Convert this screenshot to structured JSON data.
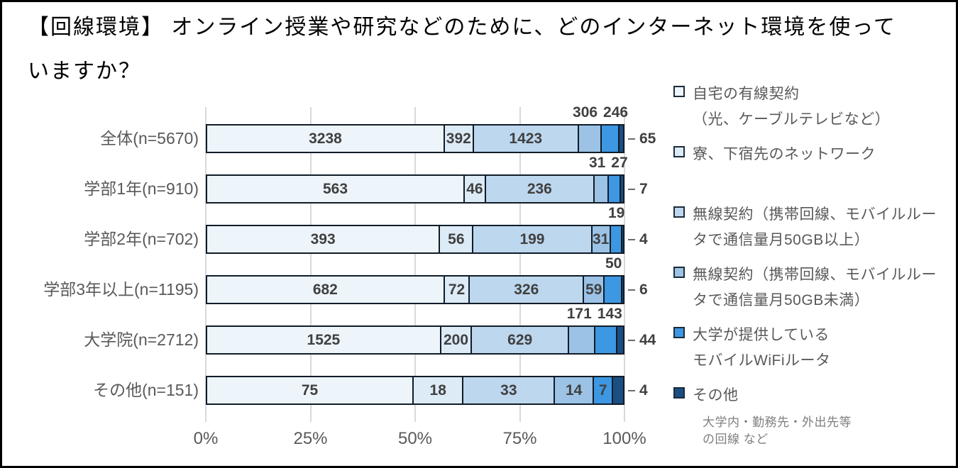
{
  "title": {
    "line1": "【回線環境】 オンライン授業や研究などのために、どのインターネット環境を使って",
    "line2": "いますか？"
  },
  "chart_data": {
    "type": "bar",
    "subtype": "horizontal-100pct-stacked",
    "title": "【回線環境】 オンライン授業や研究などのために、どのインターネット環境を使っていますか？",
    "categories": [
      "全体(n=5670)",
      "学部1年(n=910)",
      "学部2年(n=702)",
      "学部3年以上(n=1195)",
      "大学院(n=2712)",
      "その他(n=151)"
    ],
    "totals": [
      5670,
      910,
      702,
      1195,
      2712,
      151
    ],
    "series": [
      {
        "name": "自宅の有線契約（光、ケーブルテレビなど）",
        "color": "#EDF5FB",
        "values": [
          3238,
          563,
          393,
          682,
          1525,
          75
        ]
      },
      {
        "name": "寮、下宿先のネットワーク",
        "color": "#DDEBF7",
        "values": [
          392,
          46,
          56,
          72,
          200,
          18
        ]
      },
      {
        "name": "無線契約（携帯回線、モバイルルータで通信量月50GB以上）",
        "color": "#BDD7EE",
        "values": [
          1423,
          236,
          199,
          326,
          629,
          33
        ]
      },
      {
        "name": "無線契約（携帯回線、モバイルルータで通信量月50GB未満）",
        "color": "#9CC3E6",
        "values": [
          306,
          31,
          31,
          59,
          171,
          14
        ]
      },
      {
        "name": "大学が提供しているモバイルWiFiルータ",
        "color": "#3D97E2",
        "values": [
          246,
          27,
          19,
          50,
          143,
          7
        ]
      },
      {
        "name": "その他",
        "color": "#1B4E82",
        "values": [
          65,
          7,
          4,
          6,
          44,
          4
        ]
      }
    ],
    "label_placement": [
      [
        "inside",
        "inside",
        "inside",
        "above",
        "above",
        "outside"
      ],
      [
        "inside",
        "inside",
        "inside",
        "above",
        "above",
        "outside"
      ],
      [
        "inside",
        "inside",
        "inside",
        "inside",
        "above",
        "outside"
      ],
      [
        "inside",
        "inside",
        "inside",
        "inside",
        "above",
        "outside"
      ],
      [
        "inside",
        "inside",
        "inside",
        "above",
        "above",
        "outside"
      ],
      [
        "inside",
        "inside",
        "inside",
        "inside",
        "inside",
        "outside"
      ]
    ],
    "x_ticks": [
      "0%",
      "25%",
      "50%",
      "75%",
      "100%"
    ],
    "xlim": [
      0,
      100
    ],
    "grid": true,
    "legend_position": "right"
  },
  "legend": {
    "items": [
      {
        "lines": [
          "自宅の有線契約",
          "（光、ケーブルテレビなど）"
        ],
        "color": "#EDF5FB"
      },
      {
        "lines": [
          "寮、下宿先のネットワーク"
        ],
        "color": "#DDEBF7"
      },
      {
        "lines": [
          "無線契約（携帯回線、モバイルルー",
          "タで通信量月50GB以上）"
        ],
        "color": "#BDD7EE"
      },
      {
        "lines": [
          "無線契約（携帯回線、モバイルルー",
          "タで通信量月50GB未満）"
        ],
        "color": "#9CC3E6"
      },
      {
        "lines": [
          "大学が提供している",
          "モバイルWiFiルータ"
        ],
        "color": "#3D97E2"
      },
      {
        "lines": [
          "その他"
        ],
        "note": [
          "大学内・勤務先・外出先等",
          "の回線 など"
        ],
        "color": "#1B4E82"
      }
    ]
  }
}
